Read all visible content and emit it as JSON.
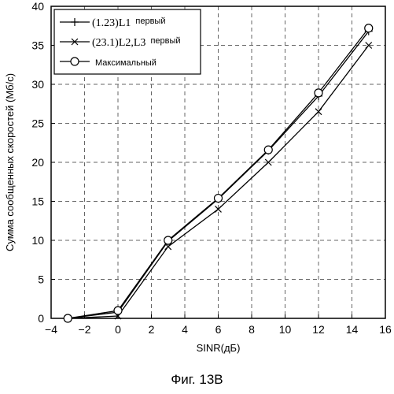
{
  "chart_data": {
    "type": "line",
    "xlabel": "SINR(дБ)",
    "ylabel": "Сумма сообщенных скоростей (Мб/с)",
    "xlim": [
      -4,
      16
    ],
    "ylim": [
      0,
      40
    ],
    "xticks": [
      -4,
      -2,
      0,
      2,
      4,
      6,
      8,
      10,
      12,
      14,
      16
    ],
    "yticks": [
      0,
      5,
      10,
      15,
      20,
      25,
      30,
      35,
      40
    ],
    "xtick_labels": [
      "−4",
      "−2",
      "0",
      "2",
      "4",
      "6",
      "8",
      "10",
      "12",
      "14",
      "16"
    ],
    "grid": true,
    "legend_position": "top-left",
    "x": [
      -3,
      0,
      3,
      6,
      9,
      12,
      15
    ],
    "series": [
      {
        "name_main": "(1.23)L1",
        "name_suffix": "первый",
        "marker": "plus",
        "values": [
          0,
          0.8,
          9.9,
          15.3,
          21.5,
          28.5,
          36.8
        ]
      },
      {
        "name_main": "(23.1)L2,L3",
        "name_suffix": "первый",
        "marker": "x",
        "values": [
          0,
          0.3,
          9.2,
          14.0,
          20.0,
          26.5,
          35.0
        ]
      },
      {
        "name_main": "Максимальный",
        "name_suffix": "",
        "marker": "circle",
        "values": [
          0,
          1.0,
          10.0,
          15.4,
          21.6,
          28.9,
          37.2
        ]
      }
    ]
  },
  "caption": "Фиг. 13В"
}
